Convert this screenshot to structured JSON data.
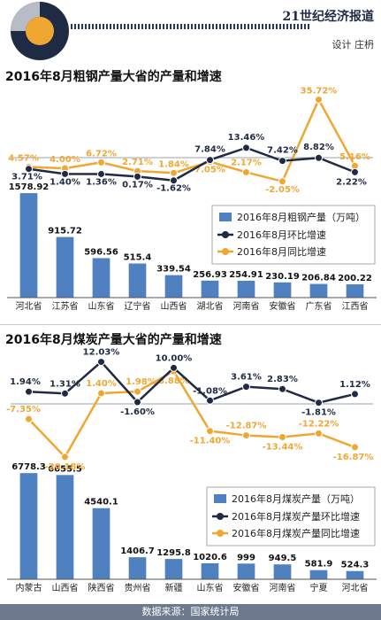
{
  "header": {
    "masthead": "21世纪经济报道",
    "credit": "设计 庄枬"
  },
  "footer": {
    "source": "数据来源：国家统计局"
  },
  "colors": {
    "bar": "#4f80c0",
    "mom": "#1f2a44",
    "yoy": "#f0a732",
    "accent": "#f0a732"
  },
  "chart_data": [
    {
      "type": "bar",
      "title": "2016年8月粗钢产量大省的产量和增速",
      "categories": [
        "河北省",
        "江苏省",
        "山东省",
        "辽宁省",
        "山西省",
        "湖北省",
        "河南省",
        "安徽省",
        "广东省",
        "江西省"
      ],
      "series": [
        {
          "name": "2016年8月粗钢产量（万吨）",
          "type": "bar",
          "values": [
            1578.92,
            915.72,
            596.56,
            515.4,
            339.54,
            256.93,
            254.91,
            230.19,
            206.84,
            200.22
          ],
          "labels": [
            "1578.92",
            "915.72",
            "596.56",
            "515.4",
            "339.54",
            "256.93",
            "254.91",
            "230.19",
            "206.84",
            "200.22"
          ]
        },
        {
          "name": "2016年8月环比增速",
          "type": "line",
          "values": [
            3.71,
            1.4,
            1.36,
            0.17,
            -1.62,
            7.84,
            13.46,
            7.42,
            8.82,
            2.22
          ],
          "labels": [
            "3.71%",
            "1.40%",
            "1.36%",
            "0.17%",
            "-1.62%",
            "7.84%",
            "13.46%",
            "7.42%",
            "8.82%",
            "2.22%"
          ]
        },
        {
          "name": "2016年8月同比增速",
          "type": "line",
          "values": [
            4.57,
            4.0,
            6.72,
            2.71,
            1.84,
            7.05,
            2.17,
            -2.05,
            35.72,
            5.16
          ],
          "labels": [
            "4.57%",
            "4.00%",
            "6.72%",
            "2.71%",
            "1.84%",
            "7.05%",
            "2.17%",
            "-2.05%",
            "35.72%",
            "5.16%"
          ]
        }
      ]
    },
    {
      "type": "bar",
      "title": "2016年8月煤炭产量大省的产量和增速",
      "categories": [
        "内蒙古",
        "山西省",
        "陕西省",
        "贵州省",
        "新疆",
        "山东省",
        "安徽省",
        "河南省",
        "宁夏",
        "河北省"
      ],
      "series": [
        {
          "name": "2016年8月煤炭产量（万吨）",
          "type": "bar",
          "values": [
            6778.3,
            6655.5,
            4540.1,
            1406.7,
            1295.8,
            1020.6,
            999,
            949.5,
            581.9,
            524.3
          ],
          "labels": [
            "6778.3",
            "6655.5",
            "4540.1",
            "1406.7",
            "1295.8",
            "1020.6",
            "999",
            "949.5",
            "581.9",
            "524.3"
          ]
        },
        {
          "name": "2016年8月煤炭产量环比增速",
          "type": "line",
          "values": [
            1.94,
            1.31,
            12.03,
            -1.6,
            10.0,
            -1.08,
            3.61,
            2.83,
            -1.81,
            1.12
          ],
          "labels": [
            "1.94%",
            "1.31%",
            "12.03%",
            "-1.60%",
            "10.00%",
            "-1.08%",
            "3.61%",
            "2.83%",
            "-1.81%",
            "1.12%"
          ]
        },
        {
          "name": "2016年8月煤炭产量同比增速",
          "type": "line",
          "values": [
            -7.35,
            -20.18,
            1.4,
            1.98,
            8.88,
            -11.4,
            -12.87,
            -13.44,
            -12.22,
            -16.87
          ],
          "labels": [
            "-7.35%",
            "-20.18%",
            "1.40%",
            "1.98%",
            "8.88%",
            "-11.40%",
            "-12.87%",
            "-13.44%",
            "-12.22%",
            "-16.87%"
          ]
        }
      ]
    }
  ]
}
